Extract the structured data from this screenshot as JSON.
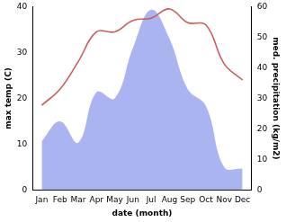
{
  "chart_data": {
    "type": "line",
    "categories": [
      "Jan",
      "Feb",
      "Mar",
      "Apr",
      "May",
      "Jun",
      "Jul",
      "Aug",
      "Sep",
      "Oct",
      "Nov",
      "Dec"
    ],
    "x_label": "date (month)",
    "y_label": "max temp (C)",
    "y2_label": "med. precipitation (kg/m2)",
    "ylim": [
      0,
      40
    ],
    "yticks": [
      0,
      10,
      20,
      30,
      40
    ],
    "y2lim": [
      0,
      60
    ],
    "y2ticks": [
      0,
      10,
      20,
      30,
      40,
      50,
      60
    ],
    "grid": false,
    "series": [
      {
        "name": "max temp",
        "type": "line",
        "color": "#cd5c5c",
        "values": [
          18.5,
          22,
          28,
          34.5,
          34.5,
          37,
          37.5,
          39.5,
          36.5,
          36,
          27.5,
          24
        ]
      },
      {
        "name": "med. precipitation",
        "type": "area",
        "color": "#aab4f0",
        "axis": "y2",
        "values": [
          16,
          22.5,
          15.5,
          32,
          30,
          46.5,
          59,
          49.5,
          33,
          27.5,
          7.5,
          7
        ]
      }
    ]
  }
}
